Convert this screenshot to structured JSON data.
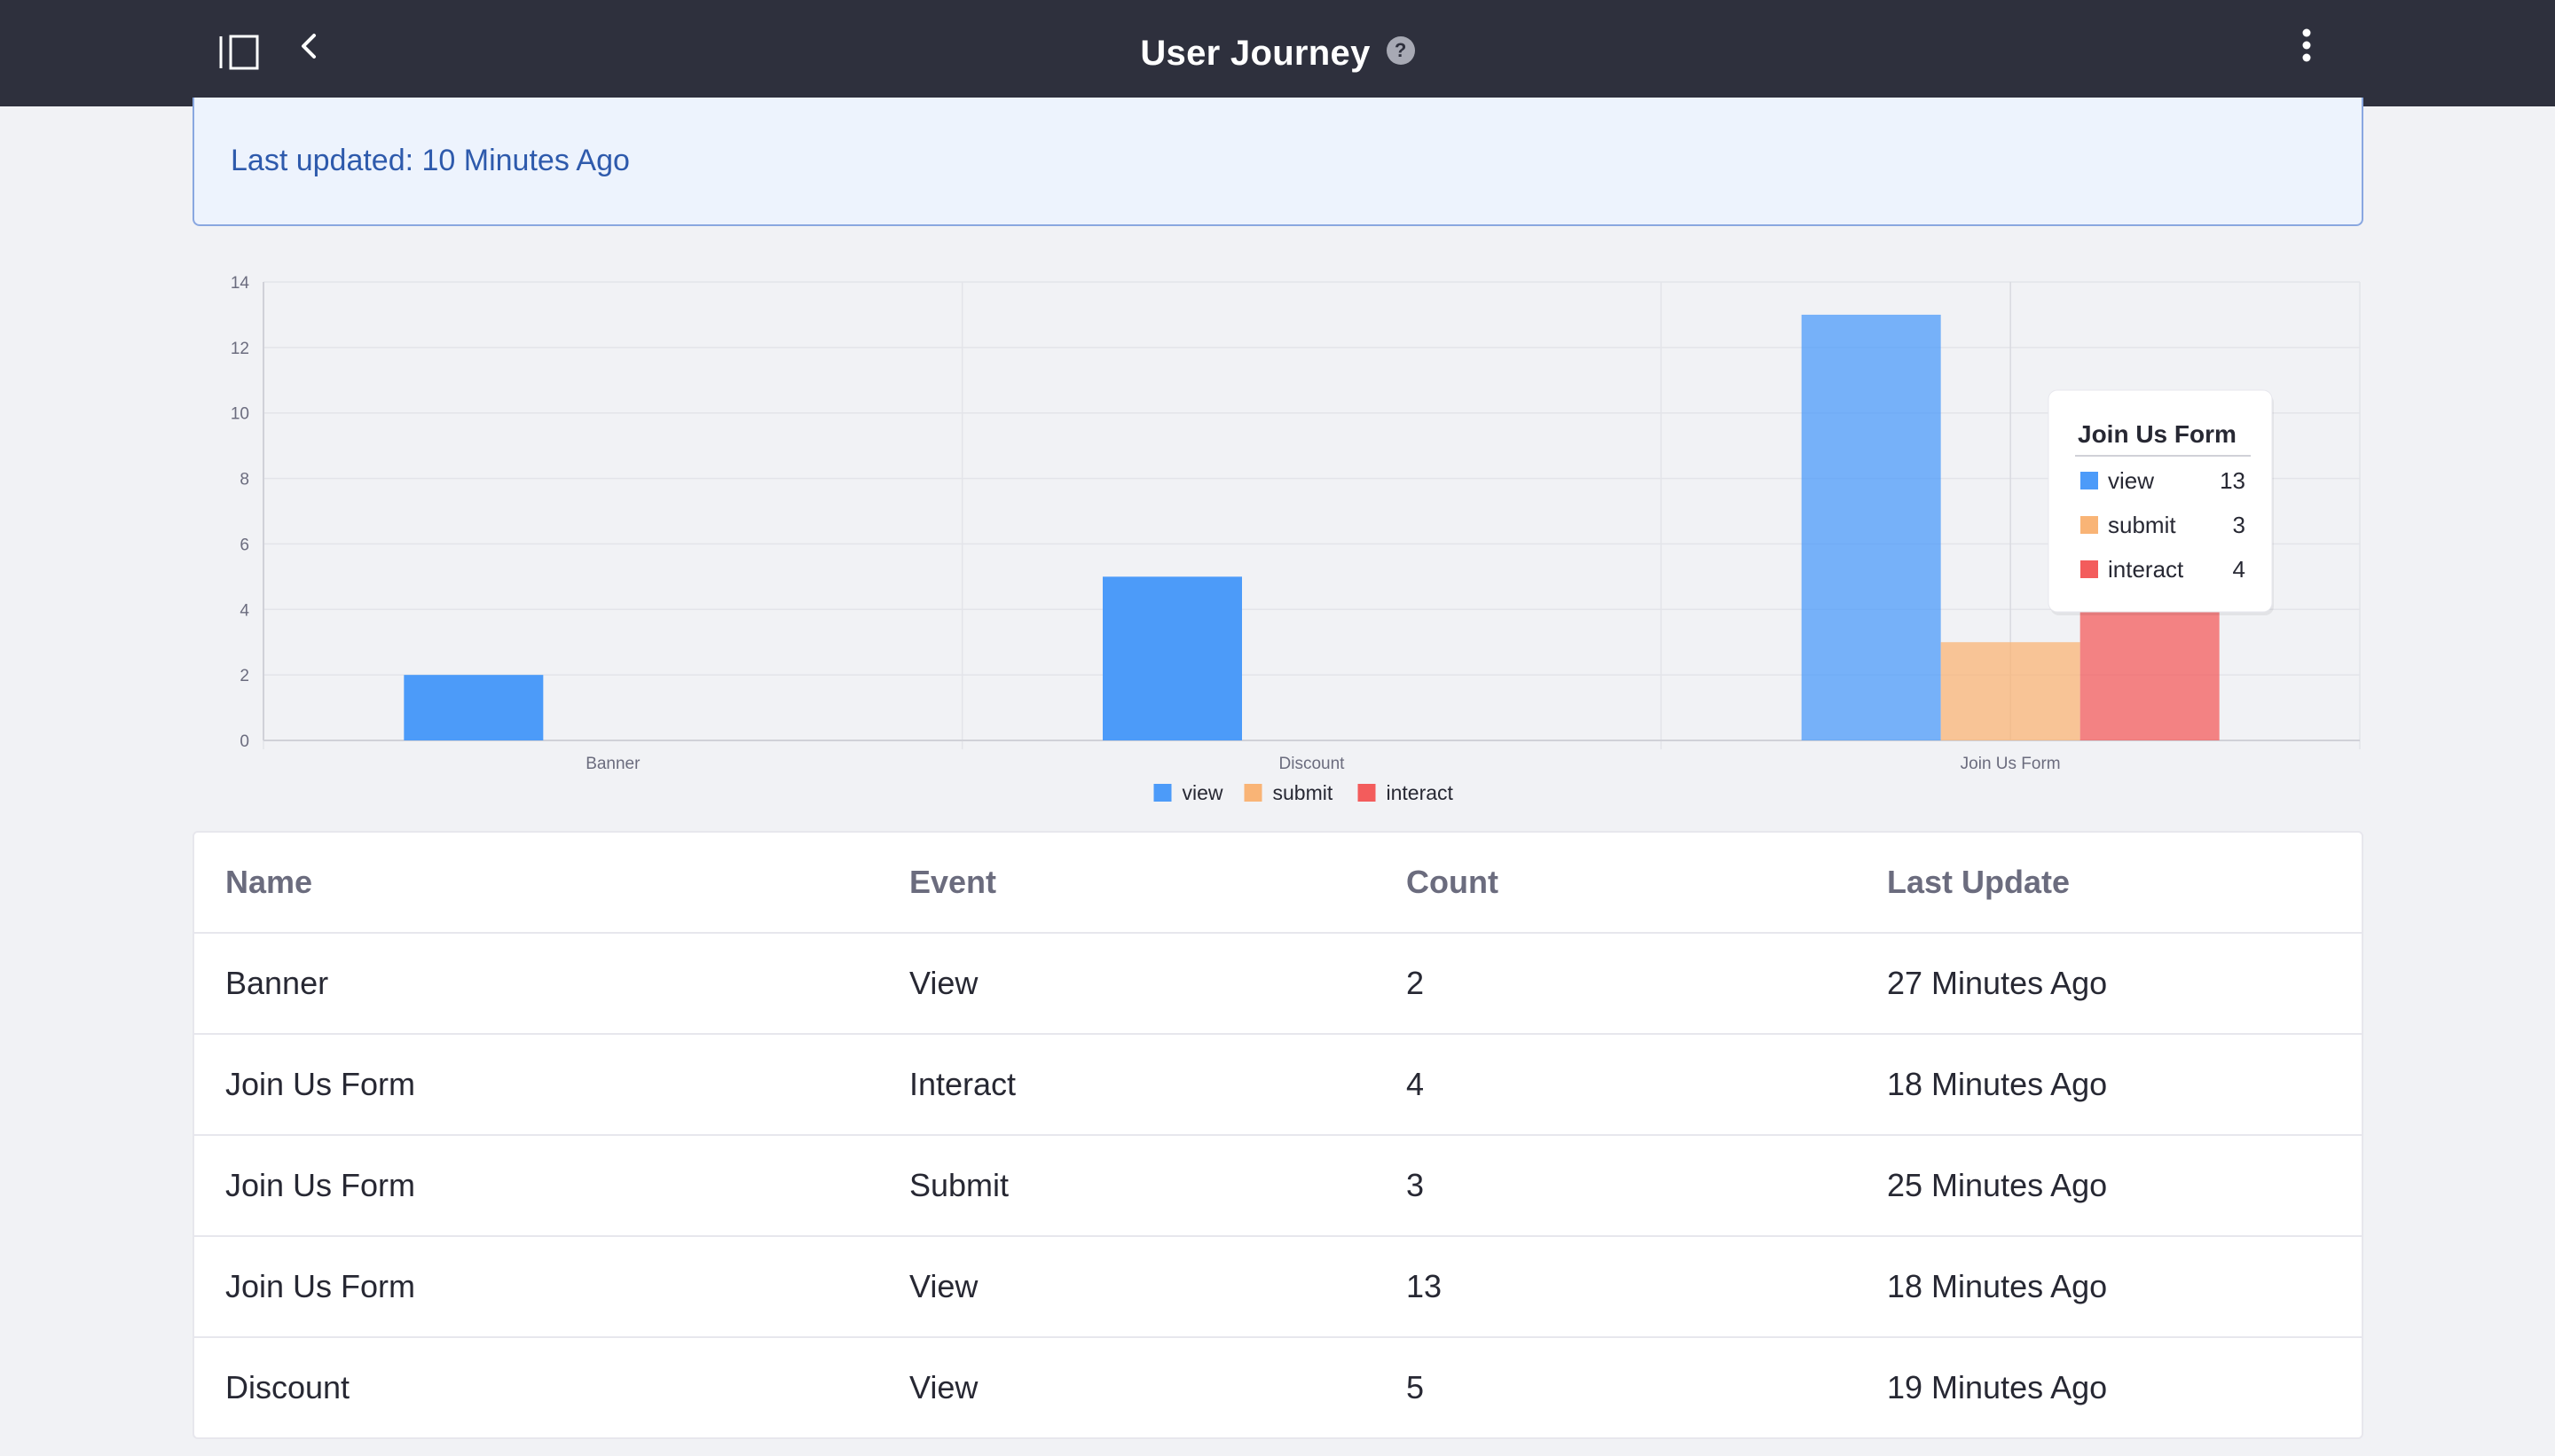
{
  "header": {
    "title": "User Journey",
    "help_glyph": "?",
    "icons": [
      "sidebar-toggle-icon",
      "chevron-left-icon",
      "help-icon",
      "kebab-menu-icon"
    ]
  },
  "alert": {
    "text": "Last updated: 10 Minutes Ago"
  },
  "chart_data": {
    "type": "bar",
    "categories": [
      "Banner",
      "Discount",
      "Join Us Form"
    ],
    "series": [
      {
        "name": "view",
        "values": [
          2,
          5,
          13
        ],
        "color": "#4c9bf9"
      },
      {
        "name": "submit",
        "values": [
          0,
          0,
          3
        ],
        "color": "#f9b476"
      },
      {
        "name": "interact",
        "values": [
          0,
          0,
          4
        ],
        "color": "#f35c5c"
      }
    ],
    "ylim": [
      0,
      14
    ],
    "yticks": [
      0,
      2,
      4,
      6,
      8,
      10,
      12,
      14
    ],
    "grid": true,
    "legend": "bottom-center",
    "tooltip": {
      "title": "Join Us Form",
      "items": [
        {
          "label": "view",
          "value": "13",
          "color": "#4c9bf9"
        },
        {
          "label": "submit",
          "value": "3",
          "color": "#f9b476"
        },
        {
          "label": "interact",
          "value": "4",
          "color": "#f35c5c"
        }
      ]
    }
  },
  "table": {
    "headers": [
      "Name",
      "Event",
      "Count",
      "Last Update"
    ],
    "rows": [
      [
        "Banner",
        "View",
        "2",
        "27 Minutes Ago"
      ],
      [
        "Join Us Form",
        "Interact",
        "4",
        "18 Minutes Ago"
      ],
      [
        "Join Us Form",
        "Submit",
        "3",
        "25 Minutes Ago"
      ],
      [
        "Join Us Form",
        "View",
        "13",
        "18 Minutes Ago"
      ],
      [
        "Discount",
        "View",
        "5",
        "19 Minutes Ago"
      ]
    ]
  },
  "colors": {
    "topbar": "#2e303d",
    "alert_bg": "#edf3fd",
    "alert_text": "#2e5aac"
  }
}
